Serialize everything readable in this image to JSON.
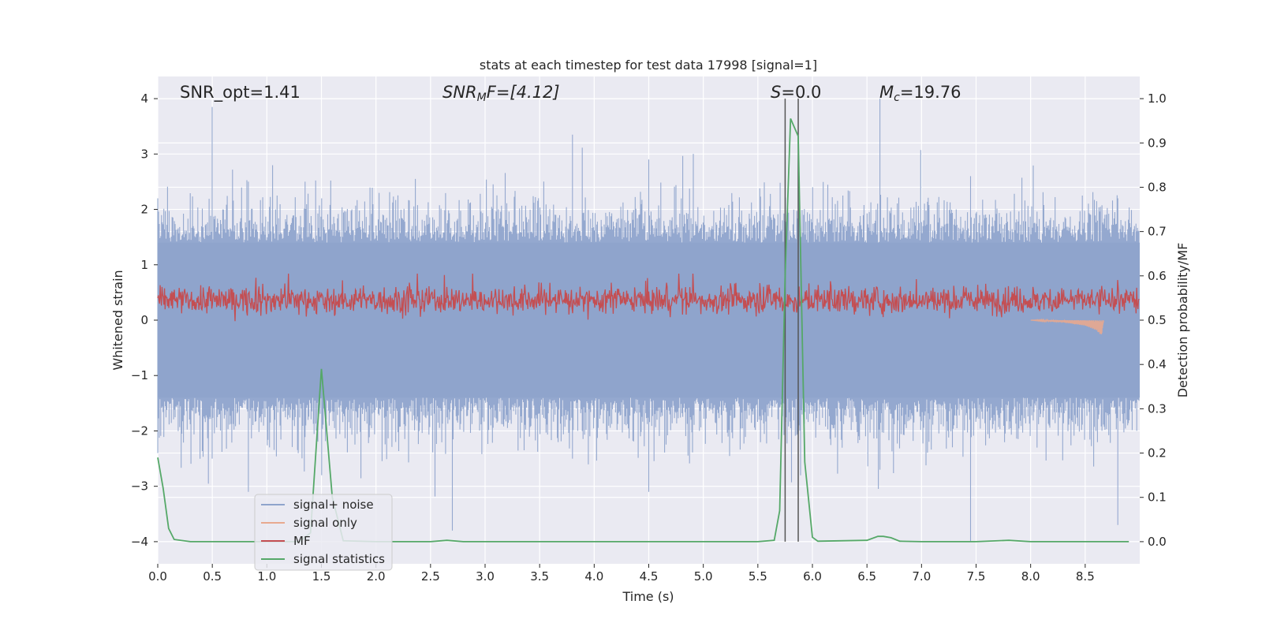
{
  "chart_data": {
    "type": "line",
    "title": "stats at each timestep for test data 17998 [signal=1]",
    "xlabel": "Time (s)",
    "ylabel_left": "Whitened strain",
    "ylabel_right": "Detection probability/MF",
    "xlim": [
      0,
      9.0
    ],
    "ylim_left": [
      -4.4,
      4.4
    ],
    "ylim_right": [
      -0.05,
      1.05
    ],
    "xticks": [
      "0.0",
      "0.5",
      "1.0",
      "1.5",
      "2.0",
      "2.5",
      "3.0",
      "3.5",
      "4.0",
      "4.5",
      "5.0",
      "5.5",
      "6.0",
      "6.5",
      "7.0",
      "7.5",
      "8.0",
      "8.5"
    ],
    "yticks_left": [
      "−4",
      "−3",
      "−2",
      "−1",
      "0",
      "1",
      "2",
      "3",
      "4"
    ],
    "yticks_right": [
      "0.0",
      "0.1",
      "0.2",
      "0.3",
      "0.4",
      "0.5",
      "0.6",
      "0.7",
      "0.8",
      "0.9",
      "1.0"
    ],
    "grid": true,
    "legend_position": "lower-left",
    "annotations": {
      "snr_opt": "SNR_opt=1.41",
      "snr_mf_sym": "SNR",
      "snr_mf_sub": "M",
      "snr_mf_rest": "F=[4.12]",
      "s_sym": "S",
      "s_rest": "=0.0",
      "mc_sym": "M",
      "mc_sub": "c",
      "mc_rest": "=19.76"
    },
    "vertical_lines_x": [
      5.75,
      5.87
    ],
    "series": [
      {
        "name": "signal+ noise",
        "axis": "left",
        "color": "#8fa4cc",
        "description_values": "whitened strain noise, range approx -4 to 4",
        "peaks": [
          [
            0.0,
            2.2,
            -2.4
          ],
          [
            0.5,
            3.85,
            -2.5
          ],
          [
            0.83,
            2.5,
            -3.1
          ],
          [
            1.5,
            2.2,
            -2.8
          ],
          [
            2.7,
            1.5,
            -3.8
          ],
          [
            3.8,
            3.35,
            -2.5
          ],
          [
            4.5,
            2.9,
            -3.1
          ],
          [
            5.88,
            2.6,
            -1.9
          ],
          [
            6.62,
            4.0,
            -2.7
          ],
          [
            7.45,
            2.6,
            -4.0
          ],
          [
            8.8,
            2.2,
            -3.7
          ]
        ]
      },
      {
        "name": "signal only",
        "axis": "left",
        "color": "#e8a98f",
        "values": [
          [
            8.0,
            0.0
          ],
          [
            8.3,
            -0.04
          ],
          [
            8.5,
            -0.1
          ],
          [
            8.6,
            -0.18
          ],
          [
            8.65,
            -0.28
          ],
          [
            8.67,
            0.0
          ]
        ]
      },
      {
        "name": "MF",
        "axis": "right",
        "color": "#c44e52",
        "range": [
          0.5,
          0.6
        ]
      },
      {
        "name": "signal statistics",
        "axis": "right",
        "color": "#55a868",
        "x": [
          0.0,
          0.05,
          0.1,
          0.15,
          0.3,
          0.5,
          1.0,
          1.3,
          1.4,
          1.5,
          1.6,
          1.7,
          2.0,
          2.5,
          2.65,
          2.8,
          3.0,
          4.0,
          5.0,
          5.5,
          5.65,
          5.7,
          5.75,
          5.8,
          5.87,
          5.93,
          6.0,
          6.05,
          6.5,
          6.6,
          6.65,
          6.72,
          6.8,
          7.0,
          7.5,
          7.8,
          8.0,
          8.5,
          8.9
        ],
        "values": [
          0.19,
          0.12,
          0.03,
          0.005,
          0.0,
          0.0,
          0.0,
          0.0,
          0.02,
          0.39,
          0.1,
          0.002,
          0.0,
          0.0,
          0.003,
          0.0,
          0.0,
          0.0,
          0.0,
          0.0,
          0.003,
          0.07,
          0.6,
          0.955,
          0.915,
          0.18,
          0.01,
          0.001,
          0.003,
          0.012,
          0.012,
          0.009,
          0.001,
          0.0,
          0.0,
          0.003,
          0.0,
          0.0,
          0.0
        ]
      }
    ]
  }
}
